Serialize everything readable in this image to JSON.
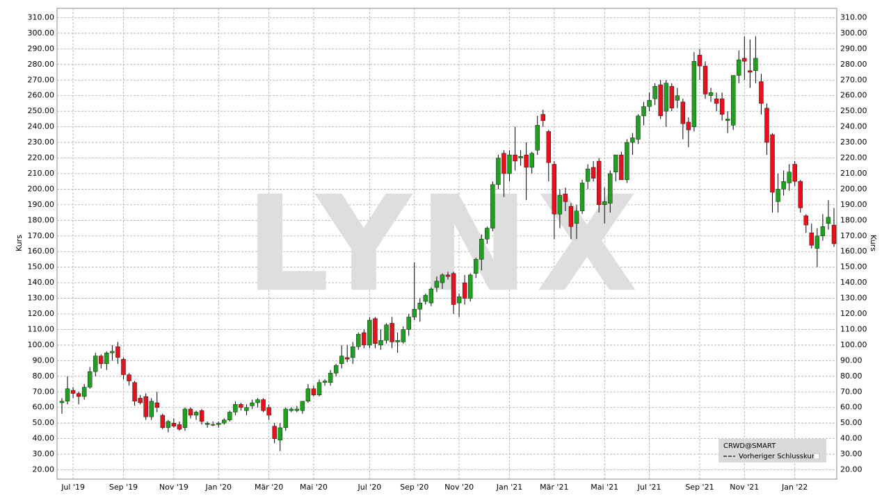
{
  "chart_data": {
    "type": "candlestick",
    "y_label": "Kurs",
    "watermark": "LYNX",
    "legend": {
      "title": "CRWD@SMART",
      "items": [
        "Vorheriger Schlusskurs"
      ]
    },
    "up_color": "#1fa01f",
    "down_color": "#e8101a",
    "grid": true,
    "ylim": [
      14,
      316
    ],
    "yticks": [
      {
        "value": 20,
        "label": "20.00"
      },
      {
        "value": 30,
        "label": "30.00"
      },
      {
        "value": 40,
        "label": "40.00"
      },
      {
        "value": 50,
        "label": "50.00"
      },
      {
        "value": 60,
        "label": "60.00"
      },
      {
        "value": 70,
        "label": "70.00"
      },
      {
        "value": 80,
        "label": "80.00"
      },
      {
        "value": 90,
        "label": "90.00"
      },
      {
        "value": 100,
        "label": "100.00"
      },
      {
        "value": 110,
        "label": "110.00"
      },
      {
        "value": 120,
        "label": "120.00"
      },
      {
        "value": 130,
        "label": "130.00"
      },
      {
        "value": 140,
        "label": "140.00"
      },
      {
        "value": 150,
        "label": "150.00"
      },
      {
        "value": 160,
        "label": "160.00"
      },
      {
        "value": 170,
        "label": "170.00"
      },
      {
        "value": 180,
        "label": "180.00"
      },
      {
        "value": 190,
        "label": "190.00"
      },
      {
        "value": 200,
        "label": "200.00"
      },
      {
        "value": 210,
        "label": "210.00"
      },
      {
        "value": 220,
        "label": "220.00"
      },
      {
        "value": 230,
        "label": "230.00"
      },
      {
        "value": 240,
        "label": "240.00"
      },
      {
        "value": 250,
        "label": "250.00"
      },
      {
        "value": 260,
        "label": "260.00"
      },
      {
        "value": 270,
        "label": "270.00"
      },
      {
        "value": 280,
        "label": "280.00"
      },
      {
        "value": 290,
        "label": "290.00"
      },
      {
        "value": 300,
        "label": "300.00"
      },
      {
        "value": 310,
        "label": "310.00"
      }
    ],
    "categories": [
      null,
      null,
      "Jul '19",
      null,
      null,
      null,
      null,
      null,
      null,
      null,
      null,
      "Sep '19",
      null,
      null,
      null,
      null,
      null,
      null,
      null,
      null,
      "Nov '19",
      null,
      null,
      null,
      null,
      null,
      null,
      null,
      "Jan '20",
      null,
      null,
      null,
      null,
      null,
      null,
      null,
      null,
      "Mär '20",
      null,
      null,
      null,
      null,
      null,
      null,
      null,
      "Mai '20",
      null,
      null,
      null,
      null,
      null,
      null,
      null,
      null,
      null,
      "Jul '20",
      null,
      null,
      null,
      null,
      null,
      null,
      null,
      "Sep '20",
      null,
      null,
      null,
      null,
      null,
      null,
      null,
      "Nov '20",
      null,
      null,
      null,
      null,
      null,
      null,
      null,
      null,
      "Jan '21",
      null,
      null,
      null,
      null,
      null,
      null,
      null,
      "Mär '21",
      null,
      null,
      null,
      null,
      null,
      null,
      null,
      null,
      "Mai '21",
      null,
      null,
      null,
      null,
      null,
      null,
      null,
      "Jul '21",
      null,
      null,
      null,
      null,
      null,
      null,
      null,
      null,
      "Sep '21",
      null,
      null,
      null,
      null,
      null,
      null,
      null,
      "Nov '21",
      null,
      null,
      null,
      null,
      null,
      null,
      null,
      null,
      "Jan '22",
      null,
      null,
      null,
      null,
      null,
      null,
      null
    ],
    "open": [
      63,
      64,
      71,
      69,
      67,
      73,
      83,
      93,
      88,
      95,
      99,
      91,
      81,
      76,
      66,
      67,
      54,
      63,
      55,
      47,
      50,
      49,
      47,
      59,
      55,
      58,
      49,
      49,
      49,
      50,
      52,
      57,
      62,
      58,
      61,
      63,
      65,
      60,
      48,
      39,
      47,
      58,
      58,
      58,
      64,
      72,
      68,
      76,
      76,
      82,
      88,
      92,
      92,
      99,
      108,
      100,
      117,
      100,
      103,
      114,
      102,
      102,
      110,
      118,
      123,
      128,
      127,
      137,
      140,
      145,
      146,
      127,
      140,
      130,
      146,
      155,
      168,
      175,
      203,
      223,
      210,
      222,
      220,
      222,
      214,
      225,
      248,
      237,
      216,
      184,
      197,
      189,
      178,
      186,
      205,
      214,
      218,
      190,
      191,
      211,
      222,
      206,
      230,
      232,
      247,
      253,
      258,
      267,
      250,
      266,
      257,
      256,
      243,
      240,
      286,
      279,
      260,
      258,
      258,
      244,
      241,
      273,
      284,
      276,
      276,
      269,
      252,
      235,
      192,
      200,
      204,
      216,
      205,
      183,
      172,
      162,
      170,
      178,
      177
    ],
    "high": [
      66,
      80,
      73,
      70,
      75,
      86,
      95,
      94,
      96,
      100,
      102,
      92,
      82,
      77,
      68,
      69,
      66,
      70,
      56,
      52,
      53,
      51,
      60,
      60,
      58,
      59,
      51,
      51,
      51,
      53,
      58,
      64,
      63,
      62,
      65,
      66,
      66,
      62,
      50,
      50,
      60,
      60,
      61,
      64,
      75,
      74,
      78,
      78,
      84,
      88,
      100,
      100,
      102,
      108,
      110,
      118,
      118,
      110,
      114,
      118,
      108,
      112,
      120,
      153,
      130,
      133,
      137,
      144,
      146,
      147,
      147,
      133,
      145,
      146,
      156,
      171,
      176,
      205,
      222,
      225,
      225,
      240,
      225,
      230,
      224,
      247,
      251,
      238,
      218,
      200,
      201,
      191,
      190,
      206,
      216,
      218,
      220,
      201,
      212,
      222,
      224,
      232,
      236,
      248,
      256,
      262,
      268,
      270,
      270,
      268,
      265,
      258,
      246,
      288,
      290,
      282,
      265,
      262,
      262,
      250,
      270,
      289,
      298,
      296,
      298,
      274,
      255,
      236,
      210,
      212,
      216,
      218,
      206,
      184,
      178,
      175,
      184,
      193,
      188
    ],
    "low": [
      56,
      62,
      66,
      62,
      65,
      72,
      80,
      85,
      84,
      90,
      88,
      78,
      74,
      61,
      62,
      52,
      52,
      57,
      46,
      44,
      47,
      45,
      45,
      53,
      52,
      49,
      47,
      48,
      47,
      49,
      51,
      55,
      58,
      55,
      59,
      60,
      57,
      52,
      37,
      32,
      45,
      57,
      57,
      56,
      63,
      67,
      67,
      74,
      74,
      80,
      85,
      89,
      88,
      97,
      98,
      98,
      98,
      97,
      101,
      98,
      95,
      101,
      106,
      116,
      115,
      126,
      125,
      134,
      136,
      142,
      120,
      118,
      126,
      128,
      143,
      148,
      165,
      173,
      200,
      195,
      205,
      212,
      215,
      193,
      210,
      222,
      240,
      205,
      168,
      175,
      186,
      168,
      168,
      184,
      200,
      205,
      185,
      178,
      185,
      205,
      208,
      204,
      222,
      229,
      241,
      250,
      254,
      245,
      240,
      250,
      252,
      232,
      227,
      237,
      270,
      258,
      256,
      250,
      244,
      236,
      238,
      268,
      270,
      265,
      268,
      248,
      222,
      185,
      185,
      196,
      199,
      202,
      185,
      172,
      162,
      150,
      167,
      174,
      163
    ],
    "close": [
      64,
      72,
      69,
      67,
      73,
      83,
      93,
      88,
      95,
      96,
      92,
      81,
      77,
      64,
      63,
      54,
      64,
      60,
      47,
      51,
      48,
      46,
      59,
      55,
      57,
      51,
      50,
      49,
      50,
      52,
      57,
      62,
      60,
      60,
      63,
      65,
      58,
      55,
      40,
      47,
      59,
      59,
      59,
      64,
      72,
      68,
      76,
      77,
      82,
      87,
      93,
      91,
      99,
      107,
      100,
      116,
      101,
      103,
      113,
      102,
      103,
      110,
      118,
      123,
      127,
      132,
      136,
      141,
      145,
      144,
      126,
      131,
      130,
      145,
      155,
      168,
      175,
      203,
      220,
      210,
      222,
      218,
      221,
      214,
      223,
      241,
      244,
      217,
      184,
      196,
      192,
      176,
      186,
      204,
      213,
      207,
      190,
      192,
      210,
      222,
      206,
      230,
      233,
      247,
      253,
      257,
      266,
      247,
      268,
      252,
      260,
      242,
      238,
      282,
      279,
      261,
      262,
      255,
      248,
      245,
      273,
      283,
      282,
      275,
      284,
      255,
      230,
      198,
      200,
      205,
      211,
      205,
      188,
      177,
      164,
      170,
      176,
      182,
      165
    ]
  }
}
